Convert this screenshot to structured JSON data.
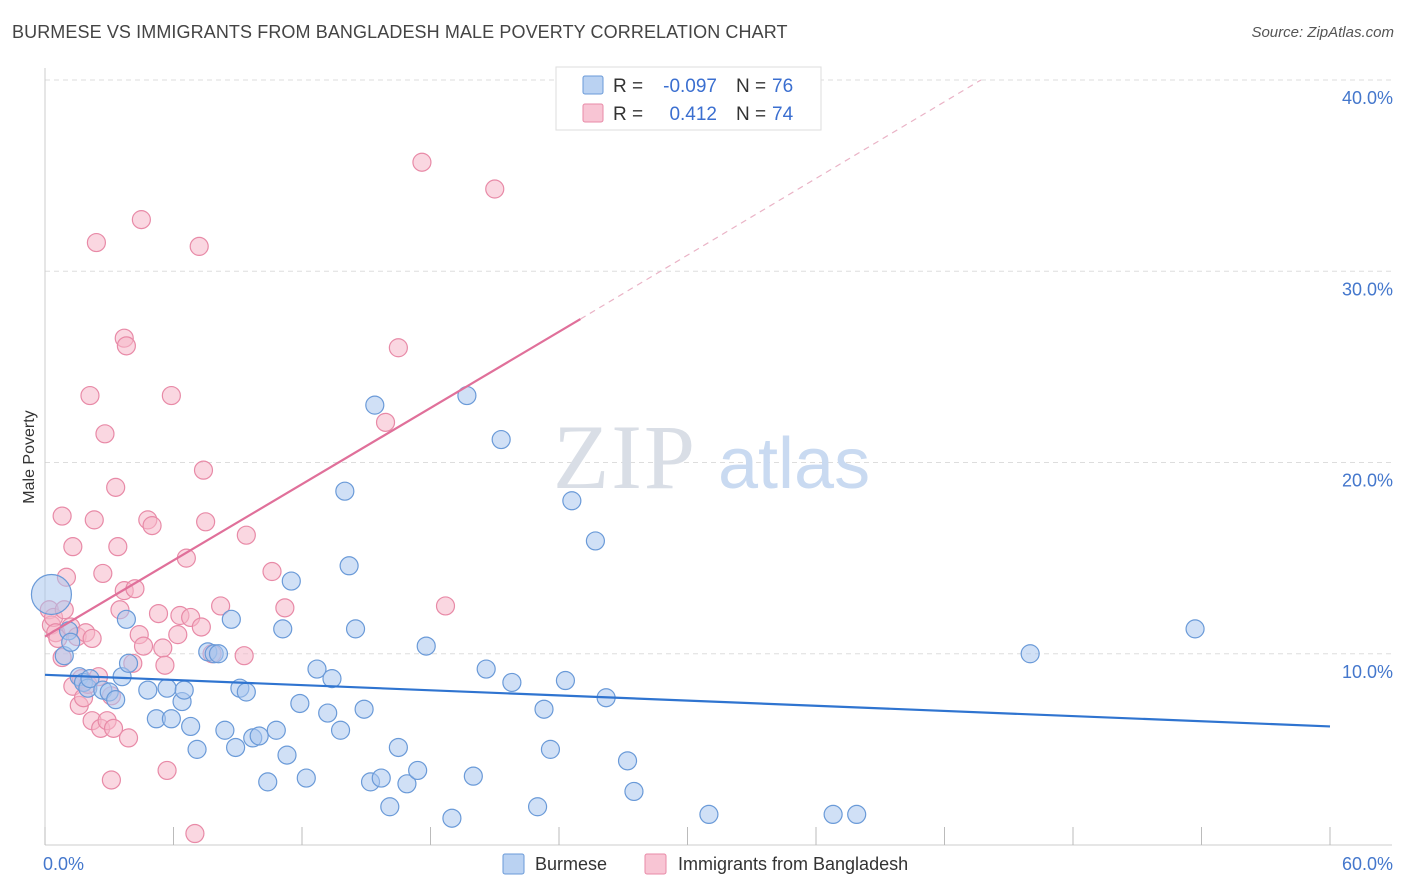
{
  "title": "BURMESE VS IMMIGRANTS FROM BANGLADESH MALE POVERTY CORRELATION CHART",
  "source": "Source: ZipAtlas.com",
  "watermark": {
    "zip": "ZIP",
    "atlas": "atlas"
  },
  "colors": {
    "burmese_fill": "#a9c7ef",
    "burmese_stroke": "#6a9ad8",
    "burmese_line": "#2f74d0",
    "bangladesh_fill": "#f6b7c9",
    "bangladesh_stroke": "#e88aa7",
    "bangladesh_line": "#e0709a",
    "tick_text": "#4477cc"
  },
  "legend": {
    "rows": [
      {
        "r_label": "R =",
        "r_value": "-0.097",
        "n_label": "N =",
        "n_value": "76"
      },
      {
        "r_label": "R =",
        "r_value": "0.412",
        "n_label": "N =",
        "n_value": "74"
      }
    ]
  },
  "bottom_legend": [
    "Burmese",
    "Immigrants from Bangladesh"
  ],
  "chart_data": {
    "type": "scatter",
    "title": "BURMESE VS IMMIGRANTS FROM BANGLADESH MALE POVERTY CORRELATION CHART",
    "xlabel": "",
    "ylabel": "Male Poverty",
    "xlim": [
      0,
      60
    ],
    "ylim": [
      0,
      40
    ],
    "x_tick_labels": [
      "0.0%",
      "60.0%"
    ],
    "y_ticks": [
      10,
      20,
      30,
      40
    ],
    "y_tick_labels": [
      "10.0%",
      "20.0%",
      "30.0%",
      "40.0%"
    ],
    "grid": "horizontal dashed",
    "legend_position": "top-center",
    "series": [
      {
        "name": "Burmese",
        "r": -0.097,
        "n": 76,
        "trend": {
          "x": [
            0,
            60
          ],
          "y": [
            8.9,
            6.2
          ]
        },
        "points": [
          [
            0.3,
            13.1
          ],
          [
            0.9,
            9.9
          ],
          [
            1.1,
            11.2
          ],
          [
            1.2,
            10.6
          ],
          [
            1.6,
            8.8
          ],
          [
            1.8,
            8.5
          ],
          [
            2.0,
            8.2
          ],
          [
            2.1,
            8.7
          ],
          [
            2.7,
            8.1
          ],
          [
            3.0,
            8.0
          ],
          [
            3.3,
            7.6
          ],
          [
            3.6,
            8.8
          ],
          [
            3.9,
            9.5
          ],
          [
            3.8,
            11.8
          ],
          [
            4.8,
            8.1
          ],
          [
            5.2,
            6.6
          ],
          [
            5.7,
            8.2
          ],
          [
            5.9,
            6.6
          ],
          [
            6.4,
            7.5
          ],
          [
            6.5,
            8.1
          ],
          [
            6.8,
            6.2
          ],
          [
            7.1,
            5.0
          ],
          [
            7.6,
            10.1
          ],
          [
            7.9,
            10.0
          ],
          [
            8.1,
            10.0
          ],
          [
            8.4,
            6.0
          ],
          [
            8.7,
            11.8
          ],
          [
            8.9,
            5.1
          ],
          [
            9.1,
            8.2
          ],
          [
            9.4,
            8.0
          ],
          [
            9.7,
            5.6
          ],
          [
            10.0,
            5.7
          ],
          [
            10.4,
            3.3
          ],
          [
            10.8,
            6.0
          ],
          [
            11.1,
            11.3
          ],
          [
            11.3,
            4.7
          ],
          [
            11.5,
            13.8
          ],
          [
            11.9,
            7.4
          ],
          [
            12.2,
            3.5
          ],
          [
            12.7,
            9.2
          ],
          [
            13.2,
            6.9
          ],
          [
            13.4,
            8.7
          ],
          [
            13.8,
            6.0
          ],
          [
            14.0,
            18.5
          ],
          [
            14.2,
            14.6
          ],
          [
            14.5,
            11.3
          ],
          [
            14.9,
            7.1
          ],
          [
            15.2,
            3.3
          ],
          [
            15.4,
            23.0
          ],
          [
            15.7,
            3.5
          ],
          [
            16.1,
            2.0
          ],
          [
            16.5,
            5.1
          ],
          [
            16.9,
            3.2
          ],
          [
            17.4,
            3.9
          ],
          [
            17.8,
            10.4
          ],
          [
            19.0,
            1.4
          ],
          [
            19.7,
            23.5
          ],
          [
            20.0,
            3.6
          ],
          [
            20.6,
            9.2
          ],
          [
            21.3,
            21.2
          ],
          [
            21.8,
            8.5
          ],
          [
            23.0,
            2.0
          ],
          [
            23.3,
            7.1
          ],
          [
            23.6,
            5.0
          ],
          [
            24.3,
            8.6
          ],
          [
            24.6,
            18.0
          ],
          [
            25.7,
            15.9
          ],
          [
            26.2,
            7.7
          ],
          [
            27.2,
            4.4
          ],
          [
            27.5,
            2.8
          ],
          [
            31.0,
            1.6
          ],
          [
            36.8,
            1.6
          ],
          [
            37.9,
            1.6
          ],
          [
            46.0,
            10.0
          ],
          [
            53.7,
            11.3
          ]
        ]
      },
      {
        "name": "Immigrants from Bangladesh",
        "r": 0.412,
        "n": 74,
        "trend": {
          "x": [
            0,
            25
          ],
          "y": [
            10.9,
            27.5
          ]
        },
        "trend_dashed": {
          "x": [
            25,
            43.7
          ],
          "y": [
            27.5,
            40
          ]
        },
        "points": [
          [
            0.2,
            12.3
          ],
          [
            0.3,
            11.5
          ],
          [
            0.4,
            11.9
          ],
          [
            0.5,
            11.1
          ],
          [
            0.6,
            10.8
          ],
          [
            0.8,
            9.8
          ],
          [
            0.8,
            17.2
          ],
          [
            0.9,
            12.3
          ],
          [
            1.0,
            14.0
          ],
          [
            1.2,
            11.4
          ],
          [
            1.3,
            15.6
          ],
          [
            1.3,
            8.3
          ],
          [
            1.5,
            10.9
          ],
          [
            1.6,
            7.3
          ],
          [
            1.7,
            8.7
          ],
          [
            1.8,
            7.7
          ],
          [
            1.9,
            11.1
          ],
          [
            2.0,
            8.4
          ],
          [
            2.1,
            23.5
          ],
          [
            2.2,
            10.8
          ],
          [
            2.2,
            6.5
          ],
          [
            2.3,
            17.0
          ],
          [
            2.4,
            31.5
          ],
          [
            2.5,
            8.8
          ],
          [
            2.6,
            6.1
          ],
          [
            2.7,
            14.2
          ],
          [
            2.8,
            21.5
          ],
          [
            2.9,
            6.5
          ],
          [
            3.1,
            7.8
          ],
          [
            3.1,
            3.4
          ],
          [
            3.2,
            6.1
          ],
          [
            3.3,
            18.7
          ],
          [
            3.4,
            15.6
          ],
          [
            3.5,
            12.3
          ],
          [
            3.7,
            26.5
          ],
          [
            3.7,
            13.3
          ],
          [
            3.8,
            26.1
          ],
          [
            3.9,
            5.6
          ],
          [
            4.1,
            9.5
          ],
          [
            4.2,
            13.4
          ],
          [
            4.4,
            11.0
          ],
          [
            4.5,
            32.7
          ],
          [
            4.6,
            10.4
          ],
          [
            4.8,
            17.0
          ],
          [
            5.0,
            16.7
          ],
          [
            5.3,
            12.1
          ],
          [
            5.5,
            10.3
          ],
          [
            5.6,
            9.4
          ],
          [
            5.7,
            3.9
          ],
          [
            5.9,
            23.5
          ],
          [
            6.2,
            11.0
          ],
          [
            6.3,
            12.0
          ],
          [
            6.6,
            15.0
          ],
          [
            6.8,
            11.9
          ],
          [
            7.0,
            0.6
          ],
          [
            7.2,
            31.3
          ],
          [
            7.3,
            11.4
          ],
          [
            7.4,
            19.6
          ],
          [
            7.5,
            16.9
          ],
          [
            7.8,
            10.0
          ],
          [
            8.2,
            12.5
          ],
          [
            9.3,
            9.9
          ],
          [
            9.4,
            16.2
          ],
          [
            10.6,
            14.3
          ],
          [
            11.2,
            12.4
          ],
          [
            15.9,
            22.1
          ],
          [
            16.5,
            26.0
          ],
          [
            17.6,
            35.7
          ],
          [
            18.7,
            12.5
          ],
          [
            21.0,
            34.3
          ]
        ]
      }
    ]
  }
}
